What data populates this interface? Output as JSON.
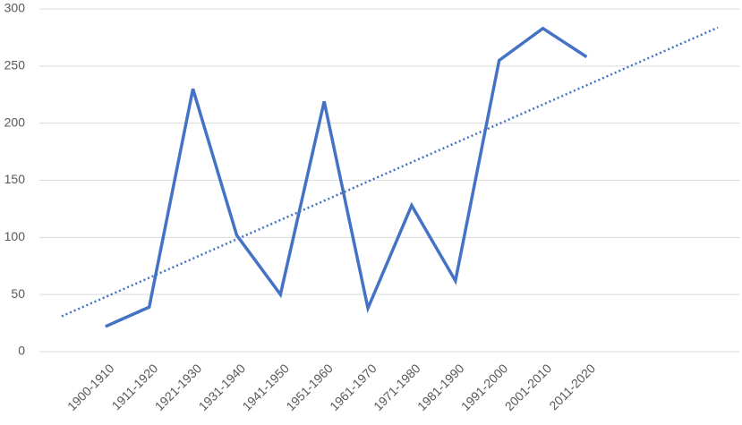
{
  "chart_data": {
    "type": "line",
    "categories": [
      "1900-1910",
      "1911-1920",
      "1921-1930",
      "1931-1940",
      "1941-1950",
      "1951-1960",
      "1961-1970",
      "1971-1980",
      "1981-1990",
      "1991-2000",
      "2001-2010",
      "2011-2020"
    ],
    "values": [
      22,
      39,
      230,
      102,
      50,
      219,
      38,
      128,
      62,
      255,
      283,
      258
    ],
    "color": "#4472c4",
    "trendline": {
      "type": "linear",
      "backward": 1,
      "forward": 3,
      "color": "#4472c4"
    },
    "ylim": [
      0,
      300
    ],
    "yticks": [
      0,
      50,
      100,
      150,
      200,
      250,
      300
    ],
    "grid": true
  }
}
